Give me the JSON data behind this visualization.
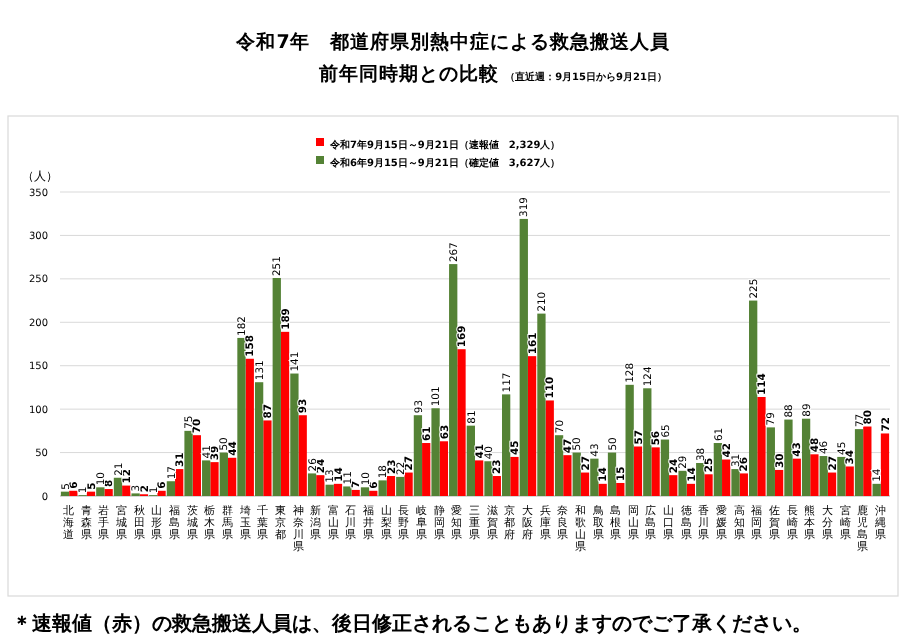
{
  "chart_data": {
    "type": "bar",
    "title": "令和7年　都道府県別熱中症による救急搬送人員",
    "subtitle": "前年同時期との比較",
    "ylabel": "（人）",
    "annotations": [
      "（直近週：9月15日から9月21日）",
      "＊速報値（赤）の救急搬送人員は、後日修正されることもありますのでご了承ください。"
    ],
    "categories": [
      "北海道",
      "青森県",
      "岩手県",
      "宮城県",
      "秋田県",
      "山形県",
      "福島県",
      "茨城県",
      "栃木県",
      "群馬県",
      "埼玉県",
      "千葉県",
      "東京都",
      "神奈川県",
      "新潟県",
      "富山県",
      "石川県",
      "福井県",
      "山梨県",
      "長野県",
      "岐阜県",
      "静岡県",
      "愛知県",
      "三重県",
      "滋賀県",
      "京都府",
      "大阪府",
      "兵庫県",
      "奈良県",
      "和歌山県",
      "鳥取県",
      "島根県",
      "岡山県",
      "広島県",
      "山口県",
      "徳島県",
      "香川県",
      "愛媛県",
      "高知県",
      "福岡県",
      "佐賀県",
      "長崎県",
      "熊本県",
      "大分県",
      "宮崎県",
      "鹿児島県",
      "沖縄県"
    ],
    "series": [
      {
        "name": "令和7年9月15日～9月21日（速報値　2,329人）",
        "color": "#ff0000",
        "values": [
          6,
          5,
          8,
          12,
          2,
          6,
          31,
          70,
          39,
          44,
          158,
          87,
          189,
          93,
          24,
          14,
          7,
          6,
          23,
          27,
          61,
          63,
          169,
          41,
          23,
          45,
          161,
          110,
          47,
          27,
          14,
          15,
          57,
          56,
          24,
          14,
          25,
          42,
          26,
          114,
          30,
          43,
          48,
          27,
          34,
          80,
          72
        ]
      },
      {
        "name": "令和6年9月15日～9月21日（確定値　3,627人）",
        "color": "#548235",
        "values": [
          5,
          1,
          10,
          21,
          3,
          1,
          17,
          75,
          41,
          50,
          182,
          131,
          251,
          141,
          26,
          13,
          11,
          10,
          18,
          22,
          93,
          101,
          267,
          81,
          40,
          117,
          319,
          210,
          70,
          50,
          43,
          50,
          128,
          124,
          65,
          29,
          38,
          61,
          31,
          225,
          79,
          88,
          89,
          46,
          45,
          77,
          14
        ]
      }
    ],
    "ylim": [
      0,
      350
    ],
    "yticks": [
      0,
      50,
      100,
      150,
      200,
      250,
      300,
      350
    ],
    "grid": "y",
    "legend": "top",
    "data_labels": true
  }
}
